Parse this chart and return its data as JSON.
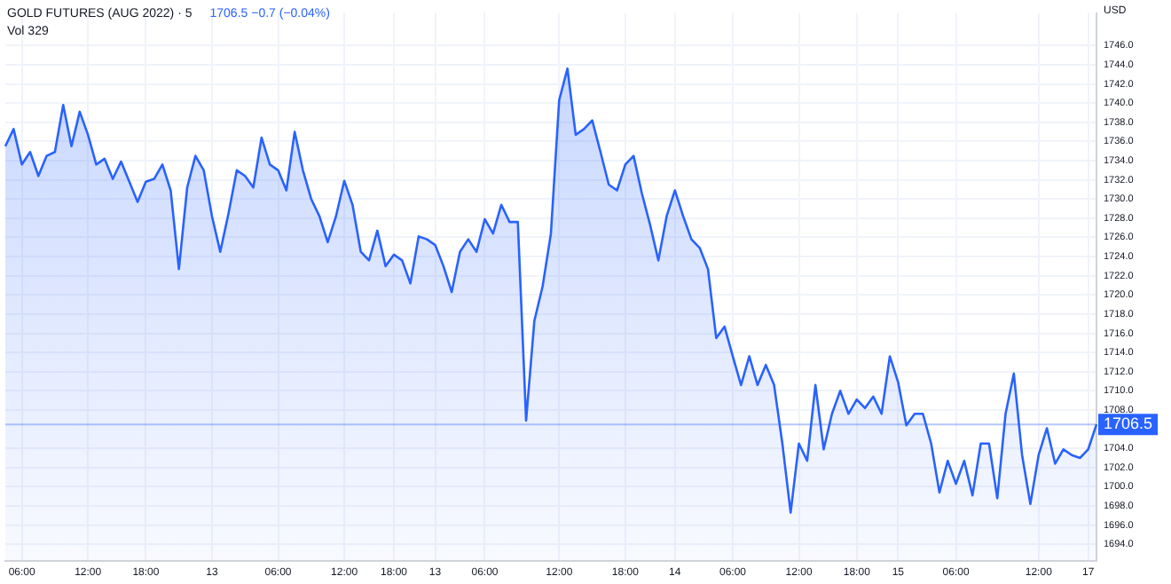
{
  "chart_data": {
    "type": "area",
    "title": "GOLD FUTURES (AUG 2022) · 5",
    "ylabel": "USD",
    "annotations": [
      "1706.5 −0.7 (−0.04%)",
      "Vol 329"
    ],
    "categories": [
      null,
      null,
      "06:00",
      null,
      null,
      null,
      null,
      null,
      null,
      null,
      "12:00",
      null,
      null,
      null,
      null,
      null,
      null,
      "18:00",
      null,
      null,
      null,
      null,
      null,
      null,
      null,
      "13",
      null,
      null,
      null,
      null,
      null,
      null,
      null,
      "06:00",
      null,
      null,
      null,
      null,
      null,
      null,
      null,
      "12:00",
      null,
      null,
      null,
      null,
      null,
      "18:00",
      null,
      null,
      null,
      null,
      "13",
      null,
      null,
      null,
      null,
      null,
      "06:00",
      null,
      null,
      null,
      null,
      null,
      null,
      null,
      null,
      "12:00",
      null,
      null,
      null,
      null,
      null,
      null,
      null,
      "18:00",
      null,
      null,
      null,
      null,
      null,
      "14",
      null,
      null,
      null,
      null,
      null,
      null,
      "06:00",
      null,
      null,
      null,
      null,
      null,
      null,
      null,
      "12:00",
      null,
      null,
      null,
      null,
      null,
      null,
      "18:00",
      null,
      null,
      null,
      null,
      "15",
      null,
      null,
      null,
      null,
      null,
      null,
      "06:00",
      null,
      null,
      null,
      null,
      null,
      null,
      null,
      null,
      null,
      "12:00",
      null,
      null,
      null,
      null,
      null,
      "17",
      null
    ],
    "ylim": [
      1692.3,
      1749.4
    ],
    "yticks": [
      {
        "value": 1694,
        "label": "1694.0"
      },
      {
        "value": 1696,
        "label": "1696.0"
      },
      {
        "value": 1698,
        "label": "1698.0"
      },
      {
        "value": 1700,
        "label": "1700.0"
      },
      {
        "value": 1702,
        "label": "1702.0"
      },
      {
        "value": 1704,
        "label": "1704.0"
      },
      {
        "value": 1708,
        "label": "1708.0"
      },
      {
        "value": 1710,
        "label": "1710.0"
      },
      {
        "value": 1712,
        "label": "1712.0"
      },
      {
        "value": 1714,
        "label": "1714.0"
      },
      {
        "value": 1716,
        "label": "1716.0"
      },
      {
        "value": 1718,
        "label": "1718.0"
      },
      {
        "value": 1720,
        "label": "1720.0"
      },
      {
        "value": 1722,
        "label": "1722.0"
      },
      {
        "value": 1724,
        "label": "1724.0"
      },
      {
        "value": 1726,
        "label": "1726.0"
      },
      {
        "value": 1728,
        "label": "1728.0"
      },
      {
        "value": 1730,
        "label": "1730.0"
      },
      {
        "value": 1732,
        "label": "1732.0"
      },
      {
        "value": 1734,
        "label": "1734.0"
      },
      {
        "value": 1736,
        "label": "1736.0"
      },
      {
        "value": 1738,
        "label": "1738.0"
      },
      {
        "value": 1740,
        "label": "1740.0"
      },
      {
        "value": 1742,
        "label": "1742.0"
      },
      {
        "value": 1744,
        "label": "1744.0"
      },
      {
        "value": 1746,
        "label": "1746.0"
      }
    ],
    "grid": true,
    "legend": false,
    "ref_lines": [
      {
        "axis": "y",
        "value": 1706.5,
        "label": "1706.5",
        "color": "#2962ff"
      }
    ],
    "series": [
      {
        "color": "#2962ff",
        "values": [
          1735.5,
          1737.3,
          1733.6,
          1734.9,
          1732.4,
          1734.5,
          1734.9,
          1739.8,
          1735.5,
          1739.1,
          1736.7,
          1733.6,
          1734.2,
          1732.1,
          1733.9,
          1731.8,
          1729.7,
          1731.8,
          1732.1,
          1733.6,
          1730.9,
          1722.7,
          1731.2,
          1734.5,
          1733.0,
          1728.2,
          1724.5,
          1728.5,
          1733.0,
          1732.4,
          1731.2,
          1736.4,
          1733.6,
          1733.0,
          1730.9,
          1737.0,
          1733.0,
          1730.0,
          1728.2,
          1725.5,
          1728.2,
          1731.9,
          1729.4,
          1724.5,
          1723.6,
          1726.7,
          1723.0,
          1724.2,
          1723.6,
          1721.2,
          1726.1,
          1725.8,
          1725.2,
          1723.0,
          1720.3,
          1724.5,
          1725.8,
          1724.5,
          1727.9,
          1726.4,
          1729.4,
          1727.6,
          1727.6,
          1706.9,
          1717.3,
          1720.9,
          1726.4,
          1740.3,
          1743.6,
          1736.7,
          1737.3,
          1738.2,
          1734.9,
          1731.5,
          1730.9,
          1733.6,
          1734.5,
          1730.6,
          1727.3,
          1723.6,
          1728.2,
          1730.9,
          1728.2,
          1725.8,
          1724.9,
          1722.7,
          1715.5,
          1716.7,
          1713.6,
          1710.6,
          1713.6,
          1710.6,
          1712.7,
          1710.6,
          1704.5,
          1697.3,
          1704.5,
          1702.7,
          1710.6,
          1703.9,
          1707.6,
          1710.0,
          1707.6,
          1709.1,
          1708.2,
          1709.4,
          1707.6,
          1713.6,
          1710.9,
          1706.4,
          1707.6,
          1707.6,
          1704.5,
          1699.4,
          1702.7,
          1700.3,
          1702.7,
          1699.1,
          1704.5,
          1704.5,
          1698.8,
          1707.6,
          1711.8,
          1703.3,
          1698.2,
          1703.3,
          1706.1,
          1702.4,
          1703.9,
          1703.3,
          1703.0,
          1703.9,
          1706.5
        ]
      }
    ]
  }
}
